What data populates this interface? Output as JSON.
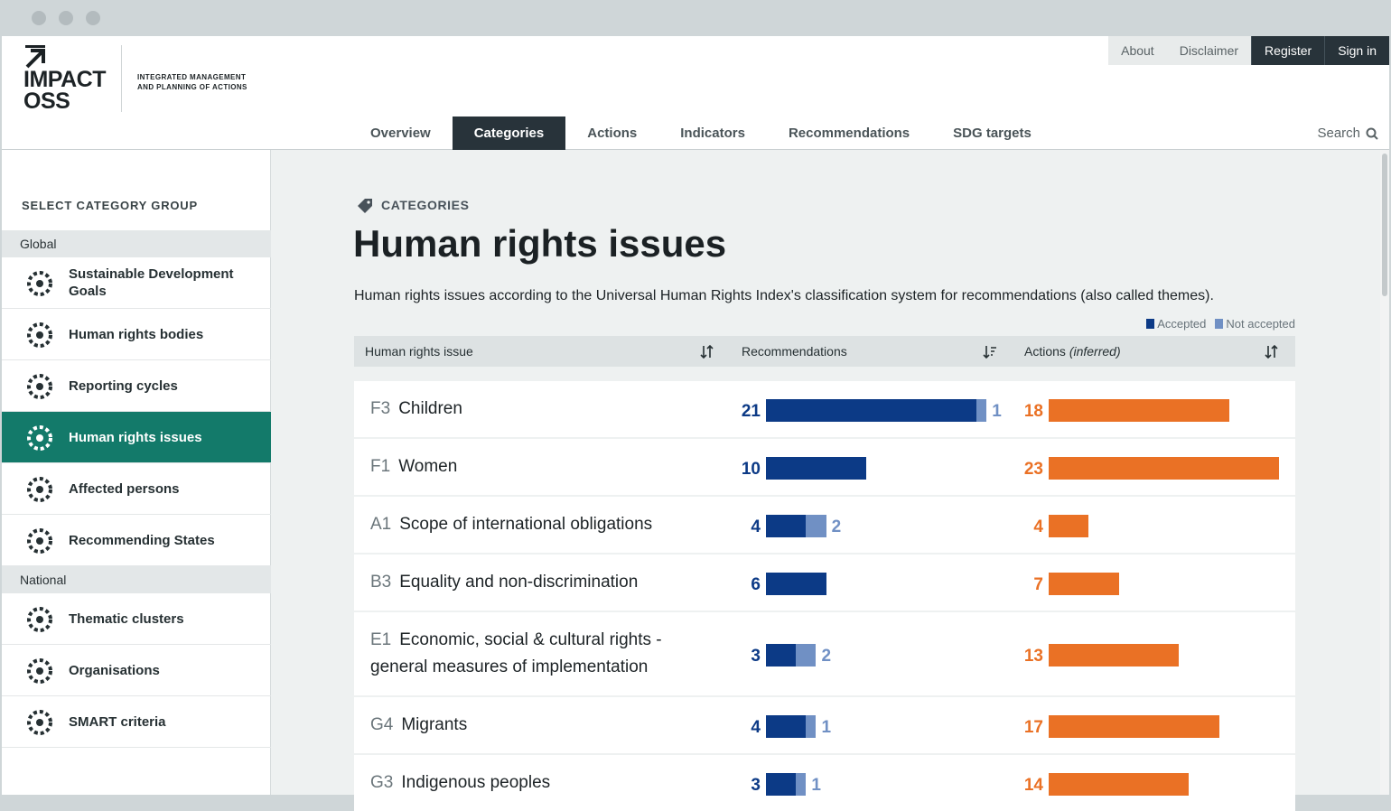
{
  "header": {
    "logo": [
      "IMPACT",
      "OSS"
    ],
    "tagline": [
      "INTEGRATED MANAGEMENT",
      "AND PLANNING OF ACTIONS"
    ],
    "top_links": [
      "About",
      "Disclaimer",
      "Register",
      "Sign in"
    ],
    "nav": [
      "Overview",
      "Categories",
      "Actions",
      "Indicators",
      "Recommendations",
      "SDG targets"
    ],
    "active_nav": 1,
    "search": "Search"
  },
  "sidebar": {
    "title": "SELECT CATEGORY GROUP",
    "groups": [
      {
        "name": "Global",
        "items": [
          "Sustainable Development Goals",
          "Human rights bodies",
          "Reporting cycles",
          "Human rights issues",
          "Affected persons",
          "Recommending States"
        ]
      },
      {
        "name": "National",
        "items": [
          "Thematic clusters",
          "Organisations",
          "SMART criteria"
        ]
      }
    ],
    "active_group": 0,
    "active_item": 3
  },
  "main": {
    "eyebrow": "CATEGORIES",
    "title": "Human rights issues",
    "description": "Human rights issues according to the Universal Human Rights Index's classification system for recommendations (also called themes).",
    "legend": [
      {
        "name": "Accepted",
        "color": "#0c3a86"
      },
      {
        "name": "Not accepted",
        "color": "#7090c4"
      }
    ],
    "columns": {
      "issue": "Human rights issue",
      "recommendations": "Recommendations",
      "actions": "Actions",
      "actions_note": "(inferred)"
    },
    "actions_color": "#ea7125",
    "rows": [
      {
        "code": "F3",
        "name": "Children",
        "accepted": 21,
        "not_accepted": 1,
        "actions": 18
      },
      {
        "code": "F1",
        "name": "Women",
        "accepted": 10,
        "not_accepted": null,
        "actions": 23
      },
      {
        "code": "A1",
        "name": "Scope of international obligations",
        "accepted": 4,
        "not_accepted": 2,
        "actions": 4
      },
      {
        "code": "B3",
        "name": "Equality and non-discrimination",
        "accepted": 6,
        "not_accepted": null,
        "actions": 7
      },
      {
        "code": "E1",
        "name": "Economic, social & cultural rights - general measures of implementation",
        "accepted": 3,
        "not_accepted": 2,
        "actions": 13
      },
      {
        "code": "G4",
        "name": "Migrants",
        "accepted": 4,
        "not_accepted": 1,
        "actions": 17
      },
      {
        "code": "G3",
        "name": "Indigenous peoples",
        "accepted": 3,
        "not_accepted": 1,
        "actions": 14
      }
    ]
  }
}
